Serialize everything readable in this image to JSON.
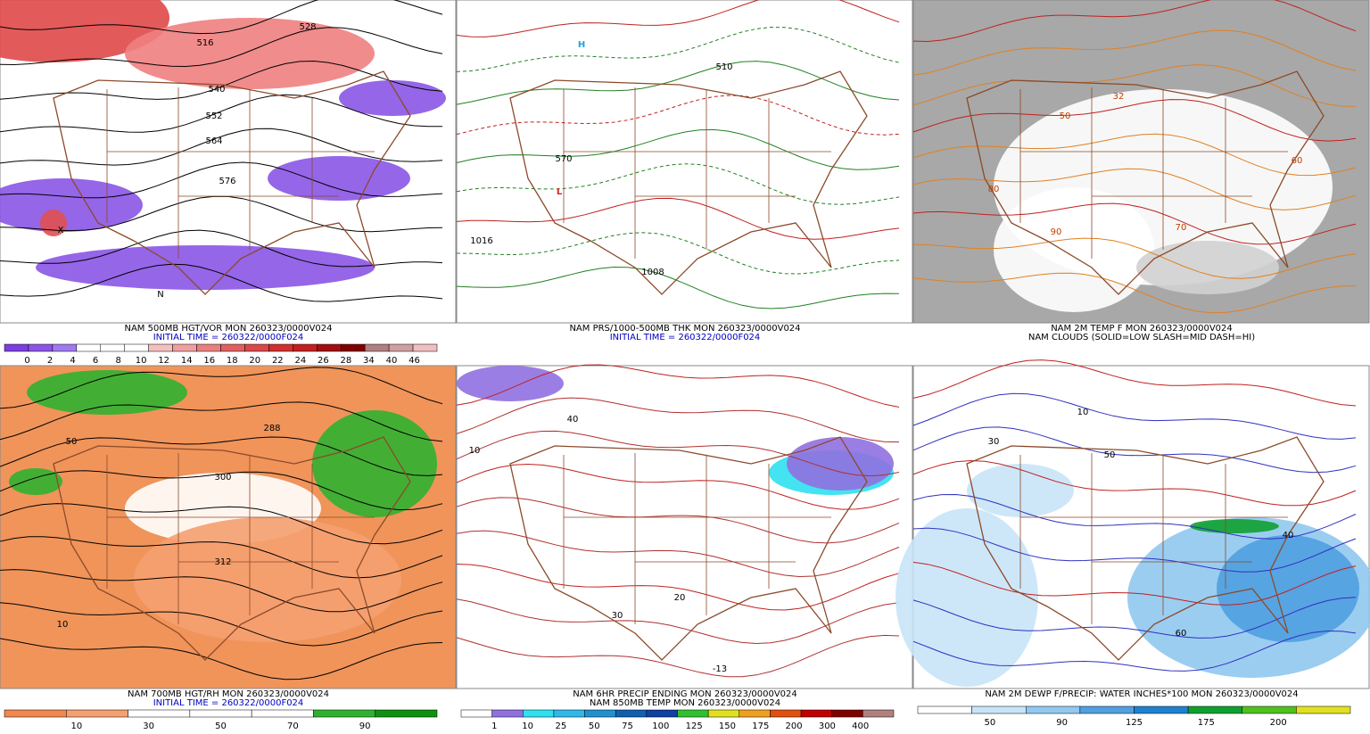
{
  "panels": [
    {
      "caption": [
        "NAM 500MB HGT/VOR MON 260323/0000V024",
        "INITIAL TIME = 260322/0000F024"
      ],
      "labels": [
        "516",
        "528",
        "540",
        "552",
        "564",
        "576",
        "N",
        "X"
      ],
      "colorbar": {
        "colors": [
          "#7b3fe0",
          "#8a55e6",
          "#a07aee",
          "#ffffff",
          "#ffffff",
          "#ffffff",
          "#f4c0c0",
          "#eea0a0",
          "#e88080",
          "#e06060",
          "#d84848",
          "#d03030",
          "#c02020",
          "#a01010",
          "#800000",
          "#b08080",
          "#d0a0a0",
          "#f0c0c0"
        ],
        "labels": [
          "0",
          "2",
          "4",
          "6",
          "8",
          "10",
          "12",
          "14",
          "16",
          "18",
          "20",
          "22",
          "24",
          "26",
          "28",
          "34",
          "40",
          "46"
        ]
      }
    },
    {
      "caption": [
        "NAM PRS/1000-500MB THK MON 260323/0000V024",
        "INITIAL TIME = 260322/0000F024"
      ],
      "labels": [
        "H",
        "L",
        "1016",
        "1008",
        "510",
        "570"
      ],
      "colorbar": null
    },
    {
      "caption": [
        "NAM 2M TEMP F MON 260323/0000V024",
        "NAM CLOUDS (SOLID=LOW SLASH=MID DASH=HI)"
      ],
      "labels": [
        "32",
        "50",
        "80",
        "90",
        "70",
        "60"
      ],
      "colorbar": null
    },
    {
      "caption": [
        "NAM 700MB HGT/RH MON 260323/0000V024",
        "INITIAL TIME = 260322/0000F024"
      ],
      "labels": [
        "50",
        "10",
        "288",
        "300",
        "312"
      ],
      "colorbar": {
        "colors": [
          "#f08850",
          "#f5a070",
          "#ffffff",
          "#ffffff",
          "#ffffff",
          "#30b030",
          "#109010"
        ],
        "labels": [
          "10",
          "30",
          "50",
          "70",
          "90"
        ]
      }
    },
    {
      "caption": [
        "NAM 6HR PRECIP ENDING MON 260323/0000V024",
        "NAM 850MB TEMP MON 260323/0000V024"
      ],
      "labels": [
        "10",
        "20",
        "30",
        "40",
        "-13"
      ],
      "colorbar": {
        "colors": [
          "#ffffff",
          "#9070e0",
          "#30e0f0",
          "#30b8e8",
          "#2090d0",
          "#1060b0",
          "#1040a0",
          "#30c030",
          "#e0e020",
          "#f0a020",
          "#e05010",
          "#c00000",
          "#800000",
          "#b08080"
        ],
        "labels": [
          "1",
          "10",
          "25",
          "50",
          "75",
          "100",
          "125",
          "150",
          "175",
          "200",
          "300",
          "400"
        ]
      }
    },
    {
      "caption": [
        "NAM 2M DEWP F/PRECIP: WATER INCHES*100 MON 260323/0000V024"
      ],
      "labels": [
        "30",
        "40",
        "50",
        "60",
        "10"
      ],
      "colorbar": {
        "colors": [
          "#ffffff",
          "#c8e4f8",
          "#90c8f0",
          "#50a0e0",
          "#2080d0",
          "#10a030",
          "#50c020",
          "#e0e020"
        ],
        "labels": [
          "50",
          "90",
          "125",
          "175",
          "200"
        ]
      }
    }
  ]
}
